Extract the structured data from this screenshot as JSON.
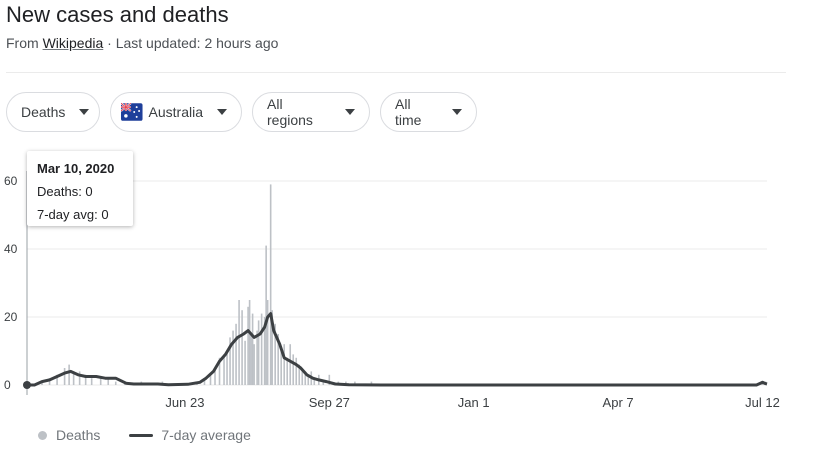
{
  "header": {
    "title": "New cases and deaths",
    "source_prefix": "From",
    "source_link": "Wikipedia",
    "updated": "· Last updated: 2 hours ago"
  },
  "filters": {
    "metric": "Deaths",
    "country": "Australia",
    "region": "All regions",
    "range": "All time"
  },
  "tooltip": {
    "date": "Mar 10, 2020",
    "deaths_label": "Deaths: 0",
    "avg_label": "7-day avg: 0"
  },
  "legend": {
    "deaths": "Deaths",
    "average": "7-day average"
  },
  "colors": {
    "bars": "#bdc1c6",
    "avg_line": "#3c4043",
    "grid": "#ebebeb"
  },
  "chart_data": {
    "type": "bar",
    "x_start": "2020-03-10",
    "x_end": "2021-07-15",
    "ylim": [
      0,
      60
    ],
    "y_ticks": [
      0,
      20,
      40,
      60
    ],
    "x_ticks": [
      {
        "label": "Jun 23",
        "date": "2020-06-23"
      },
      {
        "label": "Sep 27",
        "date": "2020-09-27"
      },
      {
        "label": "Jan 1",
        "date": "2021-01-01"
      },
      {
        "label": "Apr 7",
        "date": "2021-04-07"
      },
      {
        "label": "Jul 12",
        "date": "2021-07-12"
      }
    ],
    "series": [
      {
        "name": "Deaths",
        "kind": "bar",
        "points": [
          [
            "2020-03-10",
            0
          ],
          [
            "2020-03-20",
            1
          ],
          [
            "2020-03-25",
            2
          ],
          [
            "2020-03-30",
            3
          ],
          [
            "2020-04-04",
            5
          ],
          [
            "2020-04-07",
            6
          ],
          [
            "2020-04-10",
            4
          ],
          [
            "2020-04-14",
            4
          ],
          [
            "2020-04-18",
            3
          ],
          [
            "2020-04-22",
            2
          ],
          [
            "2020-04-28",
            2
          ],
          [
            "2020-05-03",
            2
          ],
          [
            "2020-05-08",
            1
          ],
          [
            "2020-05-14",
            1
          ],
          [
            "2020-05-25",
            1
          ],
          [
            "2020-06-08",
            1
          ],
          [
            "2020-07-01",
            1
          ],
          [
            "2020-07-06",
            2
          ],
          [
            "2020-07-10",
            3
          ],
          [
            "2020-07-13",
            5
          ],
          [
            "2020-07-16",
            8
          ],
          [
            "2020-07-19",
            9
          ],
          [
            "2020-07-21",
            10
          ],
          [
            "2020-07-23",
            14
          ],
          [
            "2020-07-25",
            16
          ],
          [
            "2020-07-27",
            18
          ],
          [
            "2020-07-29",
            25
          ],
          [
            "2020-07-31",
            22
          ],
          [
            "2020-08-02",
            13
          ],
          [
            "2020-08-04",
            23
          ],
          [
            "2020-08-05",
            25
          ],
          [
            "2020-08-06",
            15
          ],
          [
            "2020-08-07",
            21
          ],
          [
            "2020-08-08",
            12
          ],
          [
            "2020-08-10",
            16
          ],
          [
            "2020-08-11",
            19
          ],
          [
            "2020-08-13",
            21
          ],
          [
            "2020-08-15",
            20
          ],
          [
            "2020-08-16",
            41
          ],
          [
            "2020-08-17",
            25
          ],
          [
            "2020-08-19",
            59
          ],
          [
            "2020-08-20",
            22
          ],
          [
            "2020-08-22",
            18
          ],
          [
            "2020-08-24",
            15
          ],
          [
            "2020-08-26",
            10
          ],
          [
            "2020-08-28",
            12
          ],
          [
            "2020-08-30",
            8
          ],
          [
            "2020-09-01",
            12
          ],
          [
            "2020-09-03",
            9
          ],
          [
            "2020-09-05",
            8
          ],
          [
            "2020-09-07",
            6
          ],
          [
            "2020-09-09",
            5
          ],
          [
            "2020-09-11",
            4
          ],
          [
            "2020-09-13",
            3
          ],
          [
            "2020-09-15",
            4
          ],
          [
            "2020-09-17",
            2
          ],
          [
            "2020-09-20",
            3
          ],
          [
            "2020-09-23",
            1
          ],
          [
            "2020-09-27",
            3
          ],
          [
            "2020-10-03",
            1
          ],
          [
            "2020-10-08",
            1
          ],
          [
            "2020-10-14",
            1
          ],
          [
            "2020-10-25",
            1
          ],
          [
            "2021-07-12",
            1
          ],
          [
            "2021-07-14",
            1
          ]
        ]
      },
      {
        "name": "7-day average",
        "kind": "line",
        "points": [
          [
            "2020-03-10",
            0
          ],
          [
            "2020-03-15",
            0
          ],
          [
            "2020-03-20",
            1
          ],
          [
            "2020-03-25",
            1.5
          ],
          [
            "2020-03-30",
            2.5
          ],
          [
            "2020-04-04",
            3.5
          ],
          [
            "2020-04-08",
            4
          ],
          [
            "2020-04-13",
            3
          ],
          [
            "2020-04-18",
            2.5
          ],
          [
            "2020-04-25",
            2.5
          ],
          [
            "2020-05-01",
            2
          ],
          [
            "2020-05-08",
            2
          ],
          [
            "2020-05-15",
            0.5
          ],
          [
            "2020-05-20",
            0.3
          ],
          [
            "2020-06-05",
            0.3
          ],
          [
            "2020-06-12",
            0.1
          ],
          [
            "2020-06-25",
            0.2
          ],
          [
            "2020-07-03",
            0.8
          ],
          [
            "2020-07-07",
            2
          ],
          [
            "2020-07-12",
            4
          ],
          [
            "2020-07-16",
            7
          ],
          [
            "2020-07-20",
            9
          ],
          [
            "2020-07-24",
            12
          ],
          [
            "2020-07-28",
            14
          ],
          [
            "2020-08-01",
            15
          ],
          [
            "2020-08-04",
            16
          ],
          [
            "2020-08-08",
            14
          ],
          [
            "2020-08-12",
            15
          ],
          [
            "2020-08-15",
            17
          ],
          [
            "2020-08-17",
            20
          ],
          [
            "2020-08-19",
            21
          ],
          [
            "2020-08-21",
            16
          ],
          [
            "2020-08-25",
            12
          ],
          [
            "2020-08-28",
            8
          ],
          [
            "2020-09-01",
            7
          ],
          [
            "2020-09-05",
            6
          ],
          [
            "2020-09-08",
            5
          ],
          [
            "2020-09-12",
            3
          ],
          [
            "2020-09-16",
            2
          ],
          [
            "2020-09-20",
            1.5
          ],
          [
            "2020-09-25",
            1
          ],
          [
            "2020-10-01",
            0.3
          ],
          [
            "2020-10-10",
            0.1
          ],
          [
            "2020-11-01",
            0
          ],
          [
            "2021-07-08",
            0
          ],
          [
            "2021-07-12",
            0.8
          ],
          [
            "2021-07-14",
            0.4
          ],
          [
            "2021-07-15",
            0.3
          ]
        ]
      }
    ]
  }
}
